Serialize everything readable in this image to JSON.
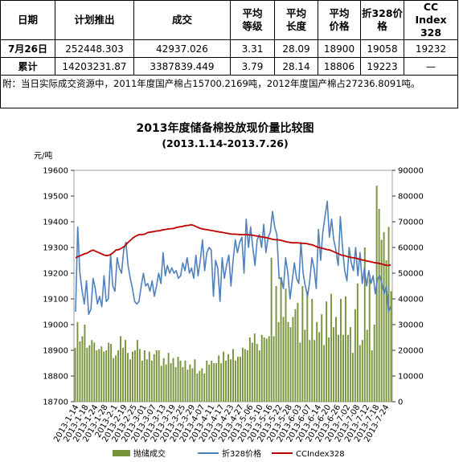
{
  "table": {
    "headers": [
      "日期",
      "计划推出",
      "成交",
      "平均\n等级",
      "平均\n长度",
      "平均\n价格",
      "折328价\n格",
      "CC\nIndex\n328"
    ],
    "rows": [
      [
        "7月26日",
        "252448.303",
        "42937.026",
        "3.31",
        "28.09",
        "18900",
        "19058",
        "19232"
      ],
      [
        "累计",
        "14203231.87",
        "3387839.449",
        "3.79",
        "28.14",
        "18806",
        "19223",
        "—"
      ]
    ],
    "note": "附：当日实际成交资源中，2011年度国产棉占15700.2169吨，2012年度国产棉占27236.8091吨。"
  },
  "chart_data": {
    "type": "bar+line",
    "title": "2013年度储备棉投放现价量比较图",
    "subtitle": "(2013.1.14-2013.7.26)",
    "ylabel": "元/吨",
    "ylim": [
      18700,
      19600
    ],
    "y_ticks": [
      18700,
      18800,
      18900,
      19000,
      19100,
      19200,
      19300,
      19400,
      19500,
      19600
    ],
    "y2lim": [
      0,
      90000
    ],
    "y2_ticks": [
      0,
      10000,
      20000,
      30000,
      40000,
      50000,
      60000,
      70000,
      80000,
      90000
    ],
    "x_labels": [
      "2013-1-14",
      "2013-1-18",
      "2013-1-24",
      "2013-1-28",
      "2013-2-1",
      "2013-2-19",
      "2013-2-25",
      "2013-3-01",
      "2013-3-07",
      "2013-3-13",
      "2013-3-19",
      "2013-3-25",
      "2013-3-29",
      "2013-4-07",
      "2013-4-11",
      "2013-4-17",
      "2013-4-23",
      "2013-4-27",
      "2013-5-06",
      "2013-5-10",
      "2013-5-16",
      "2013-5-22",
      "2013-5-28",
      "2013-6-03",
      "2013-6-07",
      "2013-6-14",
      "2013-6-20",
      "2013-6-26",
      "2013-7-02",
      "2013-7-08",
      "2013-7-12",
      "2013-7-18",
      "2013-7-24"
    ],
    "series": [
      {
        "name": "抛储成交",
        "axis": "right",
        "kind": "bar",
        "color": "#77933c",
        "values": [
          21000,
          31000,
          23500,
          25500,
          30000,
          21000,
          22000,
          24000,
          23000,
          20000,
          20500,
          21500,
          19500,
          20000,
          23000,
          22500,
          17000,
          18000,
          20000,
          25500,
          21000,
          24000,
          19000,
          16500,
          19500,
          20000,
          24000,
          20500,
          16000,
          20000,
          16500,
          19500,
          16000,
          18500,
          20000,
          20000,
          14000,
          17000,
          14500,
          19000,
          15000,
          17000,
          13500,
          17500,
          16000,
          13500,
          16000,
          12500,
          14500,
          13000,
          16500,
          11000,
          12000,
          13000,
          11000,
          16000,
          14500,
          16000,
          15000,
          15000,
          18000,
          15000,
          19500,
          16000,
          18500,
          16500,
          20500,
          16000,
          17500,
          17500,
          21000,
          20500,
          20000,
          25000,
          23000,
          26500,
          22500,
          20000,
          26000,
          25000,
          24500,
          25500,
          56000,
          25500,
          45000,
          31000,
          48500,
          33000,
          44000,
          31000,
          29000,
          33000,
          36000,
          38500,
          23000,
          45000,
          28000,
          43000,
          24000,
          40000,
          24000,
          31000,
          27000,
          34000,
          22000,
          39000,
          25000,
          42000,
          29000,
          33000,
          26000,
          40000,
          26000,
          41000,
          26000,
          29000,
          19000,
          36000,
          46000,
          22000,
          24000,
          60000,
          28000,
          48000,
          20000,
          30000,
          84000,
          75000,
          63000,
          66000,
          55000,
          68000,
          43000
        ]
      },
      {
        "name": "折328价格",
        "axis": "left",
        "kind": "line",
        "color": "#4f81bd",
        "values": [
          19050,
          19380,
          19200,
          19130,
          19080,
          19170,
          19040,
          19060,
          19180,
          19140,
          19080,
          19110,
          19070,
          19190,
          19090,
          19100,
          19270,
          19150,
          19130,
          19260,
          19220,
          19200,
          19290,
          19320,
          19230,
          19180,
          19140,
          19090,
          19080,
          19090,
          19150,
          19200,
          19150,
          19160,
          19130,
          19170,
          19110,
          19150,
          19200,
          19160,
          19280,
          19190,
          19230,
          19200,
          19220,
          19200,
          19210,
          19180,
          19190,
          19240,
          19210,
          19260,
          19200,
          19220,
          19180,
          19270,
          19190,
          19250,
          19330,
          19210,
          19280,
          19300,
          19290,
          19110,
          19250,
          19220,
          19090,
          19260,
          19180,
          19230,
          19270,
          19150,
          19250,
          19330,
          19280,
          19320,
          19340,
          19200,
          19410,
          19300,
          19380,
          19300,
          19230,
          19330,
          19350,
          19300,
          19390,
          19280,
          19340,
          19360,
          19440,
          19380,
          19350,
          19180,
          19180,
          19140,
          19260,
          19200,
          19100,
          19170,
          19240,
          19180,
          19160,
          19320,
          19200,
          19150,
          19110,
          19170,
          19260,
          19220,
          19140,
          19370,
          19250,
          19360,
          19420,
          19480,
          19340,
          19410,
          19330,
          19290,
          19230,
          19420,
          19300,
          19210,
          19170,
          19300,
          19240,
          19210,
          19300,
          19190,
          19280,
          19160,
          19220,
          19150,
          19210,
          19160,
          19190,
          19120,
          19180,
          19190,
          19160,
          19120,
          19150,
          19050,
          19070
        ]
      },
      {
        "name": "CCIndex328",
        "axis": "left",
        "kind": "line",
        "color": "#c00000",
        "values": [
          19260,
          19265,
          19270,
          19275,
          19278,
          19285,
          19290,
          19285,
          19280,
          19275,
          19270,
          19268,
          19272,
          19280,
          19290,
          19292,
          19298,
          19305,
          19318,
          19328,
          19338,
          19345,
          19350,
          19350,
          19352,
          19358,
          19360,
          19362,
          19364,
          19365,
          19368,
          19370,
          19372,
          19373,
          19374,
          19378,
          19380,
          19382,
          19385,
          19386,
          19388,
          19385,
          19380,
          19375,
          19372,
          19370,
          19368,
          19366,
          19364,
          19362,
          19360,
          19358,
          19356,
          19354,
          19352,
          19352,
          19351,
          19350,
          19350,
          19350,
          19349,
          19348,
          19346,
          19344,
          19342,
          19340,
          19338,
          19335,
          19332,
          19330,
          19330,
          19328,
          19325,
          19322,
          19320,
          19318,
          19318,
          19318,
          19316,
          19316,
          19315,
          19312,
          19310,
          19305,
          19300,
          19298,
          19295,
          19292,
          19290,
          19285,
          19280,
          19275,
          19270,
          19268,
          19265,
          19262,
          19260,
          19258,
          19255,
          19252,
          19250,
          19247,
          19245,
          19242,
          19240,
          19238,
          19235,
          19232,
          19230,
          19232
        ]
      }
    ],
    "legend": {
      "position": "bottom"
    },
    "grid": false
  }
}
